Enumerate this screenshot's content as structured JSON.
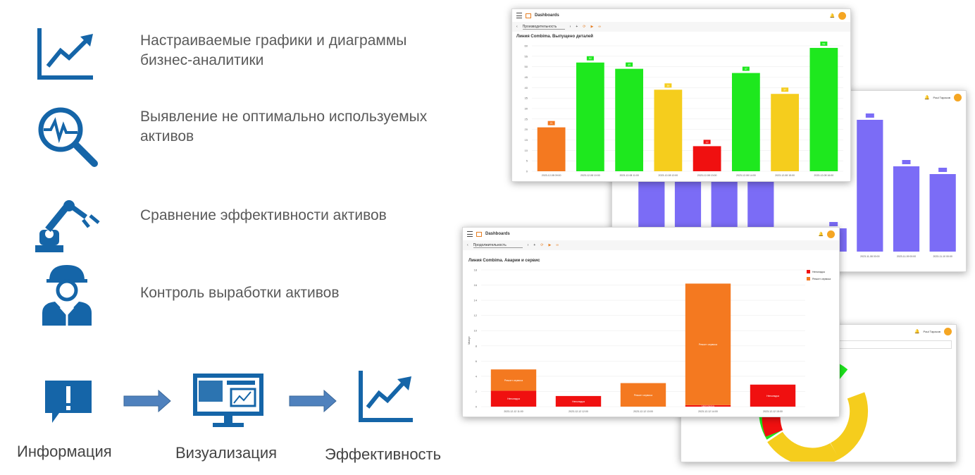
{
  "features": [
    {
      "icon": "line-chart-icon",
      "text_line1": "Настраиваемые графики и диаграммы",
      "text_line2": "бизнес-аналитики"
    },
    {
      "icon": "magnifier-pulse-icon",
      "text_line1": "Выявление не оптимально используемых",
      "text_line2": "активов"
    },
    {
      "icon": "robot-arm-icon",
      "text_line1": "Сравнение эффективности активов",
      "text_line2": ""
    },
    {
      "icon": "worker-helmet-icon",
      "text_line1": "Контроль выработки активов",
      "text_line2": ""
    }
  ],
  "flow": {
    "step1": "Информация",
    "step2": "Визуализация",
    "step3": "Эффективность"
  },
  "dashboard": {
    "title": "Dashboards",
    "period_select": "Производительность",
    "period_select_2": "Продолжительность"
  },
  "chart_top": {
    "type": "bar",
    "title": "Линия Combima. Выпущено деталей",
    "ylim": [
      0,
      60
    ],
    "yticks": [
      0,
      5,
      10,
      15,
      20,
      25,
      30,
      35,
      40,
      45,
      50,
      55,
      60
    ],
    "categories": [
      "2023-12-08 09:00",
      "2023-12-08 10:00",
      "2023-12-08 11:00",
      "2023-12-08 12:00",
      "2023-12-08 13:00",
      "2023-12-08 14:00",
      "2023-12-08 15:00",
      "2023-12-08 16:00"
    ],
    "values": [
      21,
      52,
      49,
      39,
      12,
      47,
      37,
      59
    ],
    "colors": [
      "#f47920",
      "#1ee81e",
      "#1ee81e",
      "#f5cd1d",
      "#f01010",
      "#1ee81e",
      "#f5cd1d",
      "#1ee81e"
    ]
  },
  "chart_purple": {
    "type": "bar",
    "values": [
      1.23,
      1.4,
      1.4,
      1.1,
      0.03,
      0.3,
      1.7,
      1.1,
      1.0
    ],
    "categories": [
      "",
      "",
      "",
      "",
      "",
      "",
      "2023-11-08 00:00",
      "2023-11-09 00:00",
      "2023-11-10 00:00"
    ],
    "color": "#7b6cf6"
  },
  "chart_bottom": {
    "type": "bar",
    "title": "Линия Combima. Аварии и сервис",
    "ylabel": "Минут",
    "ylim": [
      0,
      18
    ],
    "yticks": [
      0,
      2,
      4,
      6,
      8,
      10,
      12,
      14,
      16,
      18
    ],
    "categories": [
      "2023-12-12 11:00",
      "2023-12-12 12:00",
      "2023-12-12 13:00",
      "2023-12-12 14:00",
      "2023-12-12 15:00"
    ],
    "series": [
      {
        "name": "Неполадка",
        "color": "#f01010",
        "values": [
          2.1,
          1.4,
          0,
          0.2,
          2.9
        ]
      },
      {
        "name": "Ремонт сервиса",
        "color": "#f47920",
        "values": [
          2.8,
          0,
          3.1,
          16.0,
          0
        ]
      }
    ],
    "seg_labels": {
      "Неполадка": "Неполадка",
      "Ремонт сервиса": "Ремонт сервиса"
    }
  }
}
